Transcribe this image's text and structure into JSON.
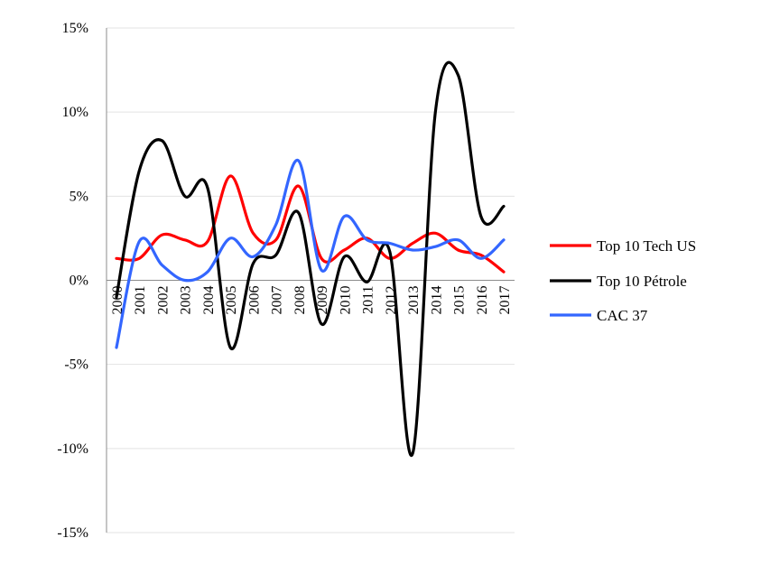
{
  "chart_data": {
    "type": "line",
    "x": [
      "2000",
      "2001",
      "2002",
      "2003",
      "2004",
      "2005",
      "2006",
      "2007",
      "2008",
      "2009",
      "2010",
      "2011",
      "2012",
      "2013",
      "2014",
      "2015",
      "2016",
      "2017"
    ],
    "yticks": [
      "15%",
      "10%",
      "5%",
      "0%",
      "-5%",
      "-10%",
      "-15%"
    ],
    "ylim": [
      -15,
      15
    ],
    "ytick_values": [
      15,
      10,
      5,
      0,
      -5,
      -10,
      -15
    ],
    "grid": true,
    "legend_position": "right",
    "series": [
      {
        "name": "Top 10 Tech US",
        "color": "#ff0000",
        "values": [
          1.3,
          1.3,
          2.7,
          2.4,
          2.3,
          6.2,
          2.8,
          2.4,
          5.6,
          1.3,
          1.8,
          2.5,
          1.3,
          2.2,
          2.8,
          1.8,
          1.5,
          0.5
        ]
      },
      {
        "name": "Top 10 Pétrole",
        "color": "#000000",
        "values": [
          -1.0,
          6.5,
          8.3,
          5.0,
          5.5,
          -4.0,
          1.0,
          1.5,
          4.0,
          -2.6,
          1.4,
          -0.1,
          1.7,
          -10.3,
          10.0,
          12.2,
          3.8,
          4.4
        ]
      },
      {
        "name": "CAC 37",
        "color": "#3366ff",
        "values": [
          -4.0,
          2.3,
          0.9,
          0.0,
          0.5,
          2.5,
          1.4,
          3.3,
          7.1,
          0.6,
          3.8,
          2.4,
          2.2,
          1.8,
          2.0,
          2.4,
          1.3,
          2.4
        ]
      }
    ]
  }
}
